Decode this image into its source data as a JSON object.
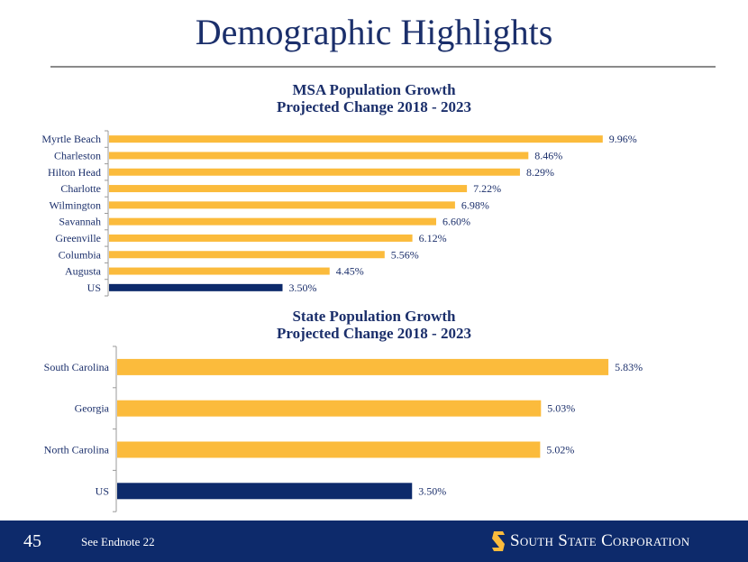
{
  "page": {
    "title": "Demographic Highlights",
    "page_number": "45",
    "endnote": "See Endnote 22",
    "logo_text": "South State Corporation",
    "colors": {
      "navy": "#0d2a6b",
      "gold": "#fbbb3c",
      "us_bar": "#0d2a6b",
      "text": "#1b2f6b"
    }
  },
  "chart_data": [
    {
      "type": "bar",
      "orientation": "horizontal",
      "title": "MSA Population Growth",
      "subtitle": "Projected Change 2018 - 2023",
      "categories": [
        "Myrtle Beach",
        "Charleston",
        "Hilton Head",
        "Charlotte",
        "Wilmington",
        "Savannah",
        "Greenville",
        "Columbia",
        "Augusta",
        "US"
      ],
      "values": [
        9.96,
        8.46,
        8.29,
        7.22,
        6.98,
        6.6,
        6.12,
        5.56,
        4.45,
        3.5
      ],
      "labels": [
        "9.96%",
        "8.46%",
        "8.29%",
        "7.22%",
        "6.98%",
        "6.60%",
        "6.12%",
        "5.56%",
        "4.45%",
        "3.50%"
      ],
      "highlight": "US",
      "xlim": [
        0,
        10.2
      ],
      "grid": false
    },
    {
      "type": "bar",
      "orientation": "horizontal",
      "title": "State Population Growth",
      "subtitle": "Projected Change 2018 - 2023",
      "categories": [
        "South Carolina",
        "Georgia",
        "North Carolina",
        "US"
      ],
      "values": [
        5.83,
        5.03,
        5.02,
        3.5
      ],
      "labels": [
        "5.83%",
        "5.03%",
        "5.02%",
        "3.50%"
      ],
      "highlight": "US",
      "xlim": [
        0,
        6.0
      ],
      "grid": false
    }
  ]
}
